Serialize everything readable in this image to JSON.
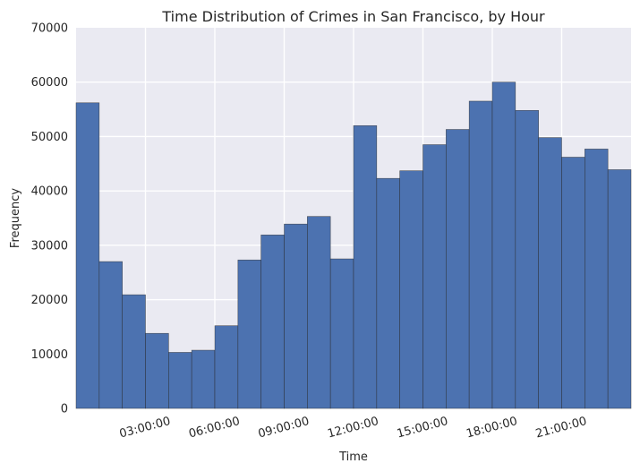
{
  "chart_data": {
    "type": "bar",
    "title": "Time Distribution of Crimes in San Francisco, by Hour",
    "xlabel": "Time",
    "ylabel": "Frequency",
    "ylim": [
      0,
      70000
    ],
    "yticks": [
      0,
      10000,
      20000,
      30000,
      40000,
      50000,
      60000,
      70000
    ],
    "xlim": [
      0,
      24
    ],
    "xticks": [
      {
        "hour": 3,
        "label": "03:00:00"
      },
      {
        "hour": 6,
        "label": "06:00:00"
      },
      {
        "hour": 9,
        "label": "09:00:00"
      },
      {
        "hour": 12,
        "label": "12:00:00"
      },
      {
        "hour": 15,
        "label": "15:00:00"
      },
      {
        "hour": 18,
        "label": "18:00:00"
      },
      {
        "hour": 21,
        "label": "21:00:00"
      }
    ],
    "bin_width_hours": 1,
    "categories": [
      0,
      1,
      2,
      3,
      4,
      5,
      6,
      7,
      8,
      9,
      10,
      11,
      12,
      13,
      14,
      15,
      16,
      17,
      18,
      19,
      20,
      21,
      22,
      23
    ],
    "values": [
      56200,
      27000,
      20900,
      13800,
      10300,
      10700,
      15200,
      27300,
      31900,
      33900,
      35300,
      27500,
      52000,
      42300,
      43700,
      48500,
      51300,
      56500,
      60000,
      54800,
      49800,
      46200,
      47700,
      43900
    ],
    "grid": true,
    "colors": {
      "bar": "#4C72B0",
      "background": "#EAEAF2",
      "grid": "#FFFFFF"
    }
  }
}
